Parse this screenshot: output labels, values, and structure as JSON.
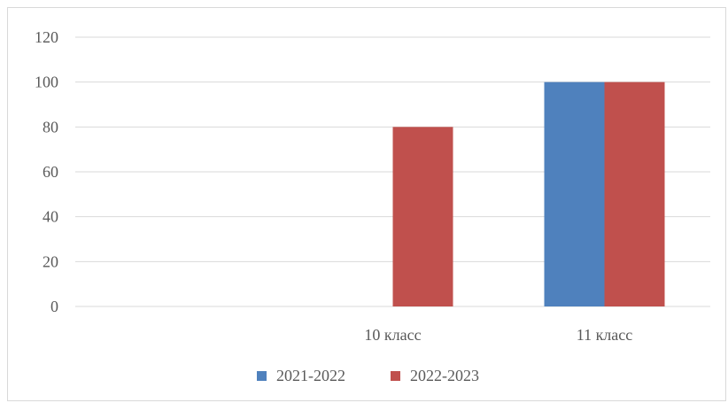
{
  "chart_data": {
    "type": "bar",
    "title": "",
    "xlabel": "",
    "ylabel": "",
    "categories": [
      "",
      "10 класс",
      "11 класс"
    ],
    "series": [
      {
        "name": "2021-2022",
        "color": "#4f81bd",
        "values": [
          0,
          0,
          100
        ]
      },
      {
        "name": "2022-2023",
        "color": "#c0504d",
        "values": [
          0,
          80,
          100
        ]
      }
    ],
    "ylim": [
      0,
      120
    ],
    "yticks": [
      "0",
      "20",
      "40",
      "60",
      "80",
      "100",
      "120"
    ],
    "grid": true,
    "gridline_color": "#d9d9d9",
    "legend": "bottom"
  }
}
